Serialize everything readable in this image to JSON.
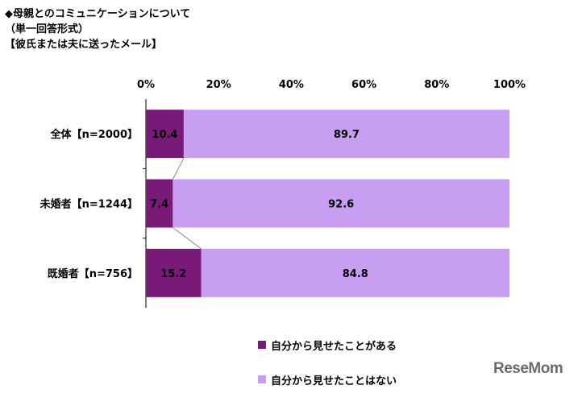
{
  "header": {
    "lines": [
      "◆母親とのコミュニケーションについて",
      "（単一回答形式）",
      "【彼氏または夫に送ったメール】"
    ]
  },
  "chart_data": {
    "type": "bar",
    "orientation": "horizontal",
    "stacked": true,
    "percent_axis": true,
    "xlim": [
      0,
      100
    ],
    "xticks": [
      "0%",
      "20%",
      "40%",
      "60%",
      "80%",
      "100%"
    ],
    "categories": [
      "全体【n=2000】",
      "未婚者【n=1244】",
      "既婚者【n=756】"
    ],
    "series": [
      {
        "name": "自分から見せたことがある",
        "values": [
          10.4,
          7.4,
          15.2
        ],
        "labels": [
          "10.4",
          "7.4",
          "15.2"
        ],
        "color": "#7a1a78"
      },
      {
        "name": "自分から見せたことはない",
        "values": [
          89.7,
          92.6,
          84.8
        ],
        "labels": [
          "89.7",
          "92.6",
          "84.8"
        ],
        "color": "#c79ef2"
      }
    ],
    "legend_position": "bottom",
    "grid": false,
    "series_lines": true
  },
  "logo": {
    "text": "ReseMom"
  }
}
